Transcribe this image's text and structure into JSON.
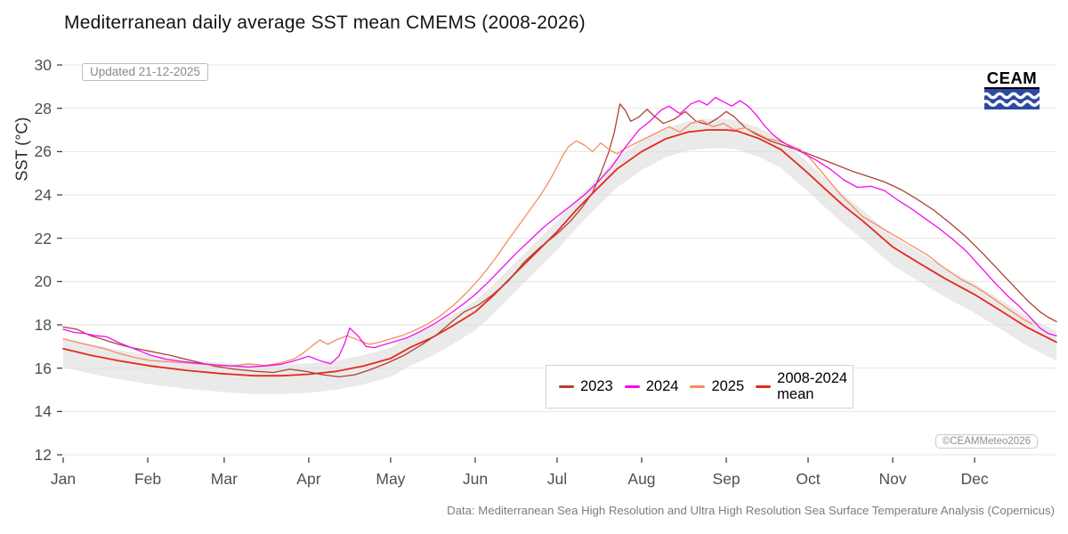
{
  "title": "Mediterranean daily average SST mean CMEMS (2008-2026)",
  "updated_label": "Updated 21-12-2025",
  "caption": "Data: Mediterranean Sea High Resolution and Ultra High Resolution Sea Surface Temperature Analysis (Copernicus)",
  "copyright_badge": "©CEAMMeteo2026",
  "logo": {
    "text": "CEAM",
    "box_color": "#2b4aa3",
    "wave_color": "#ffffff"
  },
  "chart_data": {
    "type": "line",
    "title": "Mediterranean daily average SST mean CMEMS (2008-2026)",
    "x_axis": {
      "label": "",
      "tick_labels": [
        "Jan",
        "Feb",
        "Mar",
        "Apr",
        "May",
        "Jun",
        "Jul",
        "Aug",
        "Sep",
        "Oct",
        "Nov",
        "Dec"
      ],
      "tick_days": [
        0,
        31,
        59,
        90,
        120,
        151,
        181,
        212,
        243,
        273,
        304,
        334
      ],
      "range_days": [
        0,
        364
      ]
    },
    "y_axis": {
      "title": "SST (°C)",
      "ticks": [
        12,
        14,
        16,
        18,
        20,
        22,
        24,
        26,
        28,
        30
      ],
      "range": [
        12,
        30
      ]
    },
    "grid": "horizontal-major-only",
    "grid_color": "#e4e4e4",
    "legend_position": "inside-bottom-center",
    "band": {
      "name": "2008-2024 spread around mean",
      "based_on_series": "2008-2024 mean",
      "upper_offset": 0.5,
      "lower_offset": 0.85,
      "color": "#d8d8d8",
      "opacity": 0.55
    },
    "draw_order": [
      3,
      0,
      2,
      1
    ],
    "series": [
      {
        "name": "2023",
        "color": "#ae4135",
        "width": 1.3,
        "points": [
          [
            0,
            17.9
          ],
          [
            5,
            17.8
          ],
          [
            10,
            17.5
          ],
          [
            14,
            17.35
          ],
          [
            19,
            17.15
          ],
          [
            25,
            16.95
          ],
          [
            31,
            16.8
          ],
          [
            39,
            16.6
          ],
          [
            47,
            16.35
          ],
          [
            55,
            16.1
          ],
          [
            63,
            15.95
          ],
          [
            71,
            15.85
          ],
          [
            77,
            15.8
          ],
          [
            83,
            15.95
          ],
          [
            89,
            15.85
          ],
          [
            95,
            15.7
          ],
          [
            101,
            15.6
          ],
          [
            107,
            15.7
          ],
          [
            113,
            15.95
          ],
          [
            119,
            16.25
          ],
          [
            125,
            16.6
          ],
          [
            131,
            17.05
          ],
          [
            137,
            17.55
          ],
          [
            143,
            18.2
          ],
          [
            147,
            18.6
          ],
          [
            152,
            18.9
          ],
          [
            157,
            19.35
          ],
          [
            163,
            20.0
          ],
          [
            169,
            20.9
          ],
          [
            175,
            21.6
          ],
          [
            181,
            22.2
          ],
          [
            186,
            22.8
          ],
          [
            190,
            23.4
          ],
          [
            194,
            24.1
          ],
          [
            197,
            25.0
          ],
          [
            200,
            26.0
          ],
          [
            202,
            26.9
          ],
          [
            204,
            28.2
          ],
          [
            206,
            27.9
          ],
          [
            208,
            27.4
          ],
          [
            211,
            27.6
          ],
          [
            214,
            27.95
          ],
          [
            217,
            27.6
          ],
          [
            220,
            27.3
          ],
          [
            224,
            27.5
          ],
          [
            228,
            27.85
          ],
          [
            232,
            27.4
          ],
          [
            236,
            27.25
          ],
          [
            240,
            27.55
          ],
          [
            243,
            27.85
          ],
          [
            246,
            27.6
          ],
          [
            250,
            27.1
          ],
          [
            254,
            26.8
          ],
          [
            259,
            26.5
          ],
          [
            265,
            26.25
          ],
          [
            271,
            26.0
          ],
          [
            277,
            25.7
          ],
          [
            283,
            25.4
          ],
          [
            289,
            25.1
          ],
          [
            295,
            24.85
          ],
          [
            301,
            24.6
          ],
          [
            307,
            24.25
          ],
          [
            313,
            23.8
          ],
          [
            319,
            23.3
          ],
          [
            325,
            22.7
          ],
          [
            331,
            22.05
          ],
          [
            337,
            21.3
          ],
          [
            343,
            20.5
          ],
          [
            349,
            19.7
          ],
          [
            354,
            19.05
          ],
          [
            358,
            18.6
          ],
          [
            361,
            18.35
          ],
          [
            364,
            18.15
          ]
        ]
      },
      {
        "name": "2024",
        "color": "#f20df2",
        "width": 1.3,
        "points": [
          [
            0,
            17.8
          ],
          [
            4,
            17.65
          ],
          [
            8,
            17.6
          ],
          [
            12,
            17.5
          ],
          [
            16,
            17.45
          ],
          [
            20,
            17.2
          ],
          [
            26,
            16.9
          ],
          [
            32,
            16.6
          ],
          [
            38,
            16.4
          ],
          [
            44,
            16.3
          ],
          [
            50,
            16.22
          ],
          [
            56,
            16.15
          ],
          [
            62,
            16.1
          ],
          [
            68,
            16.05
          ],
          [
            74,
            16.1
          ],
          [
            80,
            16.18
          ],
          [
            85,
            16.35
          ],
          [
            90,
            16.55
          ],
          [
            94,
            16.35
          ],
          [
            98,
            16.2
          ],
          [
            101,
            16.55
          ],
          [
            103,
            17.1
          ],
          [
            105,
            17.85
          ],
          [
            108,
            17.5
          ],
          [
            111,
            17.0
          ],
          [
            114,
            16.95
          ],
          [
            118,
            17.1
          ],
          [
            122,
            17.25
          ],
          [
            126,
            17.4
          ],
          [
            131,
            17.7
          ],
          [
            136,
            18.05
          ],
          [
            141,
            18.45
          ],
          [
            146,
            18.9
          ],
          [
            151,
            19.4
          ],
          [
            156,
            20.0
          ],
          [
            161,
            20.65
          ],
          [
            166,
            21.3
          ],
          [
            171,
            21.9
          ],
          [
            176,
            22.5
          ],
          [
            181,
            23.0
          ],
          [
            186,
            23.5
          ],
          [
            191,
            24.0
          ],
          [
            196,
            24.6
          ],
          [
            201,
            25.3
          ],
          [
            206,
            26.2
          ],
          [
            211,
            27.0
          ],
          [
            215,
            27.4
          ],
          [
            219,
            27.9
          ],
          [
            222,
            28.1
          ],
          [
            226,
            27.75
          ],
          [
            230,
            28.2
          ],
          [
            233,
            28.35
          ],
          [
            236,
            28.15
          ],
          [
            239,
            28.5
          ],
          [
            242,
            28.3
          ],
          [
            245,
            28.1
          ],
          [
            248,
            28.35
          ],
          [
            251,
            28.1
          ],
          [
            254,
            27.7
          ],
          [
            257,
            27.2
          ],
          [
            260,
            26.8
          ],
          [
            263,
            26.5
          ],
          [
            267,
            26.2
          ],
          [
            271,
            25.95
          ],
          [
            276,
            25.6
          ],
          [
            281,
            25.2
          ],
          [
            286,
            24.7
          ],
          [
            291,
            24.35
          ],
          [
            296,
            24.4
          ],
          [
            301,
            24.2
          ],
          [
            306,
            23.75
          ],
          [
            311,
            23.35
          ],
          [
            316,
            22.9
          ],
          [
            321,
            22.45
          ],
          [
            326,
            21.95
          ],
          [
            331,
            21.4
          ],
          [
            336,
            20.7
          ],
          [
            341,
            20.0
          ],
          [
            346,
            19.35
          ],
          [
            350,
            18.9
          ],
          [
            354,
            18.4
          ],
          [
            358,
            17.85
          ],
          [
            361,
            17.6
          ],
          [
            364,
            17.5
          ]
        ]
      },
      {
        "name": "2025",
        "color": "#f88a62",
        "width": 1.3,
        "points": [
          [
            0,
            17.35
          ],
          [
            5,
            17.2
          ],
          [
            10,
            17.05
          ],
          [
            15,
            16.9
          ],
          [
            20,
            16.7
          ],
          [
            26,
            16.5
          ],
          [
            32,
            16.35
          ],
          [
            38,
            16.3
          ],
          [
            44,
            16.25
          ],
          [
            50,
            16.2
          ],
          [
            56,
            16.12
          ],
          [
            62,
            16.1
          ],
          [
            68,
            16.2
          ],
          [
            74,
            16.12
          ],
          [
            80,
            16.25
          ],
          [
            85,
            16.45
          ],
          [
            88,
            16.7
          ],
          [
            91,
            17.0
          ],
          [
            94,
            17.3
          ],
          [
            97,
            17.1
          ],
          [
            100,
            17.3
          ],
          [
            104,
            17.5
          ],
          [
            108,
            17.3
          ],
          [
            112,
            17.1
          ],
          [
            116,
            17.2
          ],
          [
            120,
            17.35
          ],
          [
            124,
            17.5
          ],
          [
            128,
            17.7
          ],
          [
            133,
            18.0
          ],
          [
            138,
            18.4
          ],
          [
            143,
            18.9
          ],
          [
            148,
            19.5
          ],
          [
            153,
            20.2
          ],
          [
            158,
            21.0
          ],
          [
            163,
            21.9
          ],
          [
            167,
            22.6
          ],
          [
            171,
            23.3
          ],
          [
            175,
            24.0
          ],
          [
            178,
            24.6
          ],
          [
            181,
            25.3
          ],
          [
            183,
            25.8
          ],
          [
            185,
            26.2
          ],
          [
            188,
            26.5
          ],
          [
            191,
            26.3
          ],
          [
            194,
            26.0
          ],
          [
            197,
            26.4
          ],
          [
            200,
            26.1
          ],
          [
            203,
            25.9
          ],
          [
            206,
            26.15
          ],
          [
            210,
            26.4
          ],
          [
            214,
            26.65
          ],
          [
            218,
            26.9
          ],
          [
            222,
            27.15
          ],
          [
            226,
            26.9
          ],
          [
            230,
            27.3
          ],
          [
            234,
            27.45
          ],
          [
            238,
            27.15
          ],
          [
            242,
            27.3
          ],
          [
            246,
            27.0
          ],
          [
            250,
            27.1
          ],
          [
            254,
            26.85
          ],
          [
            258,
            26.6
          ],
          [
            262,
            26.5
          ],
          [
            266,
            26.3
          ],
          [
            270,
            26.1
          ],
          [
            273,
            25.8
          ],
          [
            277,
            25.2
          ],
          [
            281,
            24.6
          ],
          [
            285,
            24.0
          ],
          [
            289,
            23.5
          ],
          [
            293,
            23.0
          ],
          [
            297,
            22.7
          ],
          [
            301,
            22.4
          ],
          [
            305,
            22.1
          ],
          [
            309,
            21.8
          ],
          [
            313,
            21.5
          ],
          [
            317,
            21.2
          ],
          [
            321,
            20.8
          ],
          [
            325,
            20.45
          ],
          [
            329,
            20.1
          ],
          [
            333,
            19.85
          ],
          [
            337,
            19.55
          ],
          [
            341,
            19.2
          ],
          [
            345,
            18.85
          ],
          [
            349,
            18.5
          ],
          [
            352,
            18.25
          ],
          [
            355,
            18.05
          ]
        ]
      },
      {
        "name": "2008-2024 mean",
        "color": "#e42a1d",
        "width": 1.8,
        "points": [
          [
            0,
            16.9
          ],
          [
            10,
            16.6
          ],
          [
            20,
            16.35
          ],
          [
            32,
            16.1
          ],
          [
            45,
            15.9
          ],
          [
            58,
            15.75
          ],
          [
            70,
            15.65
          ],
          [
            80,
            15.65
          ],
          [
            90,
            15.72
          ],
          [
            100,
            15.85
          ],
          [
            110,
            16.1
          ],
          [
            120,
            16.45
          ],
          [
            127,
            16.95
          ],
          [
            135,
            17.4
          ],
          [
            142,
            17.9
          ],
          [
            151,
            18.6
          ],
          [
            158,
            19.4
          ],
          [
            165,
            20.3
          ],
          [
            173,
            21.3
          ],
          [
            181,
            22.3
          ],
          [
            188,
            23.3
          ],
          [
            195,
            24.2
          ],
          [
            203,
            25.2
          ],
          [
            212,
            26.0
          ],
          [
            221,
            26.6
          ],
          [
            229,
            26.9
          ],
          [
            236,
            27.0
          ],
          [
            243,
            27.0
          ],
          [
            247,
            26.95
          ],
          [
            255,
            26.6
          ],
          [
            263,
            26.1
          ],
          [
            273,
            25.0
          ],
          [
            279,
            24.3
          ],
          [
            286,
            23.5
          ],
          [
            293,
            22.8
          ],
          [
            304,
            21.6
          ],
          [
            313,
            20.9
          ],
          [
            323,
            20.15
          ],
          [
            334,
            19.4
          ],
          [
            343,
            18.7
          ],
          [
            353,
            17.9
          ],
          [
            364,
            17.2
          ]
        ]
      }
    ]
  }
}
